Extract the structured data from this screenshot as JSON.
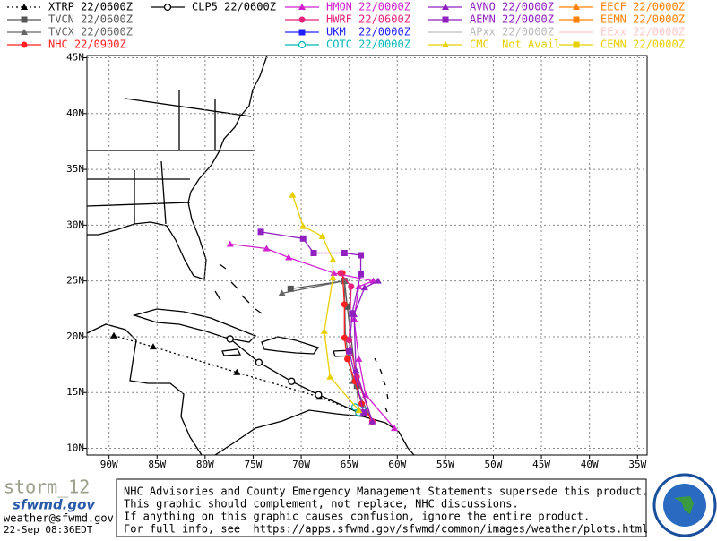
{
  "map": {
    "xlim": [
      -92.3,
      -34
    ],
    "ylim": [
      9.4,
      45.2
    ],
    "grid": true,
    "xticks": [
      {
        "value": -90,
        "label": "90W"
      },
      {
        "value": -85,
        "label": "85W"
      },
      {
        "value": -80,
        "label": "80W"
      },
      {
        "value": -75,
        "label": "75W"
      },
      {
        "value": -70,
        "label": "70W"
      },
      {
        "value": -65,
        "label": "65W"
      },
      {
        "value": -60,
        "label": "60W"
      },
      {
        "value": -55,
        "label": "55W"
      },
      {
        "value": -50,
        "label": "50W"
      },
      {
        "value": -45,
        "label": "45W"
      },
      {
        "value": -40,
        "label": "40W"
      },
      {
        "value": -35,
        "label": "35W"
      }
    ],
    "yticks": [
      {
        "value": 10,
        "label": "10N"
      },
      {
        "value": 15,
        "label": "15N"
      },
      {
        "value": 20,
        "label": "20N"
      },
      {
        "value": 25,
        "label": "25N"
      },
      {
        "value": 30,
        "label": "30N"
      },
      {
        "value": 35,
        "label": "35N"
      },
      {
        "value": 40,
        "label": "40N"
      },
      {
        "value": 45,
        "label": "45N"
      }
    ],
    "series": [
      {
        "name": "XTRP 22/0600Z",
        "color": "#000000",
        "marker": "triangle",
        "line": "dotted",
        "lon": [
          -64,
          -68.1,
          -76.7,
          -85.4,
          -89.5
        ],
        "lat": [
          13.2,
          14.6,
          16.8,
          19.1,
          20.1
        ]
      },
      {
        "name": "TVCN 22/0600Z",
        "color": "#555555",
        "marker": "square",
        "line": "solid",
        "lon": [
          -64,
          -64.2,
          -65.2,
          -65.5,
          -71.1
        ],
        "lat": [
          13.2,
          15.6,
          22.7,
          25,
          24.3
        ]
      },
      {
        "name": "TVCX 22/0600Z",
        "color": "#666666",
        "marker": "triangle",
        "line": "solid",
        "lon": [
          -62.6,
          -64.6,
          -65.4,
          -65.5,
          -72
        ],
        "lat": [
          12.4,
          16,
          20,
          25,
          23.9
        ]
      },
      {
        "name": "NHC 22/0900Z",
        "color": "#ff2020",
        "marker": "circle",
        "line": "solid",
        "lon": [
          -62.6,
          -63.7,
          -64.4,
          -65.2,
          -65.5,
          -65.5,
          -65.7
        ],
        "lat": [
          12.4,
          14,
          16,
          18,
          19.9,
          22.9,
          25.7
        ]
      },
      {
        "name": "CLP5 22/0600Z",
        "color": "#000000",
        "marker": "open-circle",
        "line": "solid",
        "lon": [
          -64,
          -68.2,
          -71,
          -74.4,
          -77.4
        ],
        "lat": [
          13.2,
          14.8,
          16,
          17.7,
          19.8
        ]
      },
      {
        "name": "HMON 22/0000Z",
        "color": "#d020d0",
        "marker": "triangle",
        "line": "solid",
        "lon": [
          -60.3,
          -63.3,
          -64,
          -64.5,
          -64,
          -62.5,
          -66.6,
          -71.3,
          -73.6,
          -77.4
        ],
        "lat": [
          11.8,
          14.8,
          18,
          21.6,
          24.5,
          25,
          25.7,
          27.1,
          27.9,
          28.3
        ]
      },
      {
        "name": "HWRF 22/0600Z",
        "color": "#e8207a",
        "marker": "circle",
        "line": "solid",
        "lon": [
          -62.6,
          -64.2,
          -65,
          -64.8,
          -65.9
        ],
        "lat": [
          12.4,
          16.4,
          19.7,
          24.5,
          25.7
        ]
      },
      {
        "name": "UKM  22/0000Z",
        "color": "#2020ff",
        "marker": "square"
      },
      {
        "name": "COTC 22/0000Z",
        "color": "#00b8b8",
        "marker": "open-circle",
        "line": "solid",
        "lon": [
          -64,
          -64.4,
          -63.6
        ],
        "lat": [
          13.2,
          13.7,
          13.4
        ]
      },
      {
        "name": "AVNO 22/0000Z",
        "color": "#9020c0",
        "marker": "triangle",
        "line": "solid",
        "lon": [
          -62.6,
          -64.3,
          -64.5,
          -63.4,
          -62
        ],
        "lat": [
          12.4,
          17,
          22,
          24.4,
          25
        ]
      },
      {
        "name": "AEMN 22/0000Z",
        "color": "#9020c0",
        "marker": "square",
        "line": "solid",
        "lon": [
          -63.5,
          -65,
          -64.7,
          -63.8,
          -63.8,
          -65.5,
          -68.7,
          -69.8,
          -74.2
        ],
        "lat": [
          13.2,
          18.7,
          22.1,
          25.6,
          27.3,
          27.5,
          27.5,
          28.8,
          29.4
        ]
      },
      {
        "name": "APxx 22/0000Z",
        "color": "#bbbbbb",
        "marker": "none"
      },
      {
        "name": "CMC  Not Avail",
        "color": "#e8d000",
        "marker": "triangle",
        "line": "solid",
        "lon": [
          -64,
          -67,
          -67.6,
          -66.7,
          -66.7,
          -67.8,
          -69.8,
          -70.9
        ],
        "lat": [
          13.4,
          16.4,
          20.5,
          25.3,
          26.9,
          29,
          29.9,
          32.7
        ]
      },
      {
        "name": "EECF 22/0000Z",
        "color": "#ff8000",
        "marker": "triangle"
      },
      {
        "name": "EEMN 22/0000Z",
        "color": "#ff8000",
        "marker": "square"
      },
      {
        "name": "EExx 22/0000Z",
        "color": "#ffc8c8",
        "marker": "none"
      },
      {
        "name": "CEMN 22/0000Z",
        "color": "#e8d000",
        "marker": "square"
      }
    ]
  },
  "footer": {
    "storm": "storm_12",
    "site": "sfwmd.gov",
    "email": "weather@sfwmd.gov",
    "timestamp": "22-Sep 08:36EDT",
    "notice": [
      "NHC Advisories and County Emergency Management Statements supersede this product.",
      "This graphic should complement, not replace, NHC discussions.",
      "If anything on this graphic causes confusion, ignore the entire product.",
      "For full info, see  https://apps.sfwmd.gov/sfwmd/common/images/weather/plots.html"
    ]
  }
}
